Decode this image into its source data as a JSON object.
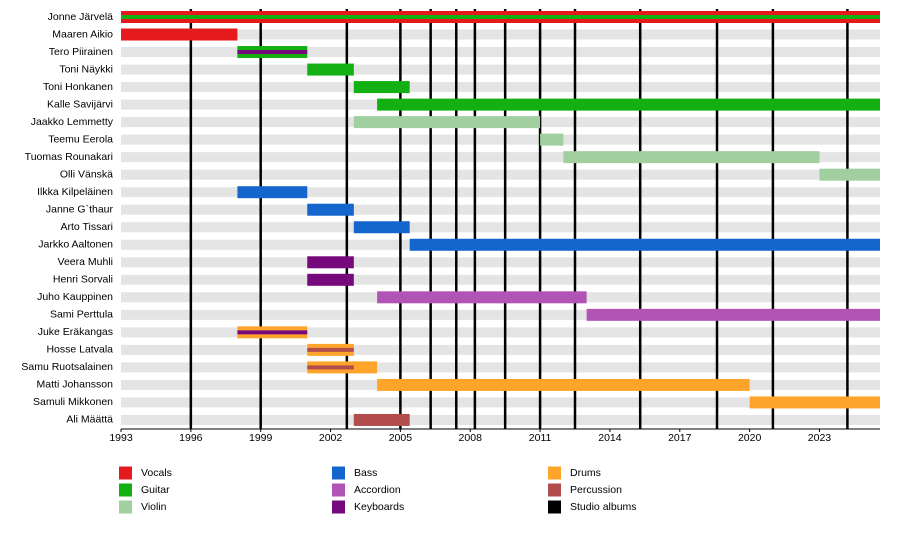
{
  "chart_data": {
    "type": "timeline",
    "xlim": [
      1993,
      2025.6
    ],
    "xticks": [
      1993,
      1996,
      1999,
      2002,
      2005,
      2008,
      2011,
      2014,
      2017,
      2020,
      2023
    ],
    "series": [
      {
        "name": "Vocals",
        "color": "#e41a1c"
      },
      {
        "name": "Guitar",
        "color": "#12b012"
      },
      {
        "name": "Violin",
        "color": "#a1cf9f"
      },
      {
        "name": "Bass",
        "color": "#1466cc"
      },
      {
        "name": "Accordion",
        "color": "#b055b5"
      },
      {
        "name": "Keyboards",
        "color": "#760a7d"
      },
      {
        "name": "Drums",
        "color": "#ffa42a"
      },
      {
        "name": "Percussion",
        "color": "#b24d4d"
      }
    ],
    "albums": {
      "name": "Studio albums",
      "color": "#000000",
      "x": [
        1996,
        1999,
        2002.7,
        2005,
        2006.3,
        2007.4,
        2008.2,
        2009.5,
        2011,
        2012.5,
        2015.3,
        2018.6,
        2021,
        2024.2
      ]
    },
    "rows": [
      {
        "name": "Jonne Järvelä",
        "bars": [
          {
            "role": "Vocals",
            "start": 1993,
            "end": 2025.6
          },
          {
            "role": "Guitar",
            "start": 1993,
            "end": 2025.6,
            "stripe": true
          }
        ]
      },
      {
        "name": "Maaren Aikio",
        "bars": [
          {
            "role": "Vocals",
            "start": 1993,
            "end": 1998
          }
        ]
      },
      {
        "name": "Tero Piirainen",
        "bars": [
          {
            "role": "Guitar",
            "start": 1998,
            "end": 2001
          },
          {
            "role": "Keyboards",
            "start": 1998,
            "end": 2001,
            "stripe": true
          }
        ]
      },
      {
        "name": "Toni Näykki",
        "bars": [
          {
            "role": "Guitar",
            "start": 2001,
            "end": 2003
          }
        ]
      },
      {
        "name": "Toni Honkanen",
        "bars": [
          {
            "role": "Guitar",
            "start": 2003,
            "end": 2005.4
          }
        ]
      },
      {
        "name": "Kalle Savijärvi",
        "bars": [
          {
            "role": "Guitar",
            "start": 2004,
            "end": 2025.6
          }
        ]
      },
      {
        "name": "Jaakko Lemmetty",
        "bars": [
          {
            "role": "Violin",
            "start": 2003,
            "end": 2011
          }
        ]
      },
      {
        "name": "Teemu Eerola",
        "bars": [
          {
            "role": "Violin",
            "start": 2011,
            "end": 2012
          }
        ]
      },
      {
        "name": "Tuomas Rounakari",
        "bars": [
          {
            "role": "Violin",
            "start": 2012,
            "end": 2023
          }
        ]
      },
      {
        "name": "Olli Vänskä",
        "bars": [
          {
            "role": "Violin",
            "start": 2023,
            "end": 2025.6
          }
        ]
      },
      {
        "name": "Ilkka Kilpeläinen",
        "bars": [
          {
            "role": "Bass",
            "start": 1998,
            "end": 2001
          }
        ]
      },
      {
        "name": "Janne G`thaur",
        "bars": [
          {
            "role": "Bass",
            "start": 2001,
            "end": 2003
          }
        ]
      },
      {
        "name": "Arto Tissari",
        "bars": [
          {
            "role": "Bass",
            "start": 2003,
            "end": 2005.4
          }
        ]
      },
      {
        "name": "Jarkko Aaltonen",
        "bars": [
          {
            "role": "Bass",
            "start": 2005.4,
            "end": 2025.6
          }
        ]
      },
      {
        "name": "Veera Muhli",
        "bars": [
          {
            "role": "Keyboards",
            "start": 2001,
            "end": 2003
          }
        ]
      },
      {
        "name": "Henri Sorvali",
        "bars": [
          {
            "role": "Keyboards",
            "start": 2001,
            "end": 2003
          }
        ]
      },
      {
        "name": "Juho Kauppinen",
        "bars": [
          {
            "role": "Accordion",
            "start": 2004,
            "end": 2013
          }
        ]
      },
      {
        "name": "Sami Perttula",
        "bars": [
          {
            "role": "Accordion",
            "start": 2013,
            "end": 2025.6
          }
        ]
      },
      {
        "name": "Juke Eräkangas",
        "bars": [
          {
            "role": "Drums",
            "start": 1998,
            "end": 2001
          },
          {
            "role": "Keyboards",
            "start": 1998,
            "end": 2001,
            "stripe": true
          }
        ]
      },
      {
        "name": "Hosse Latvala",
        "bars": [
          {
            "role": "Drums",
            "start": 2001,
            "end": 2003
          },
          {
            "role": "Percussion",
            "start": 2001,
            "end": 2003,
            "stripe": true
          }
        ]
      },
      {
        "name": "Samu Ruotsalainen",
        "bars": [
          {
            "role": "Drums",
            "start": 2001,
            "end": 2004
          },
          {
            "role": "Percussion",
            "start": 2001,
            "end": 2003,
            "stripe": true
          }
        ]
      },
      {
        "name": "Matti Johansson",
        "bars": [
          {
            "role": "Drums",
            "start": 2004,
            "end": 2020
          }
        ]
      },
      {
        "name": "Samuli Mikkonen",
        "bars": [
          {
            "role": "Drums",
            "start": 2020,
            "end": 2025.6
          }
        ]
      },
      {
        "name": "Ali Määttä",
        "bars": [
          {
            "role": "Percussion",
            "start": 2003,
            "end": 2005.4
          }
        ]
      }
    ]
  }
}
